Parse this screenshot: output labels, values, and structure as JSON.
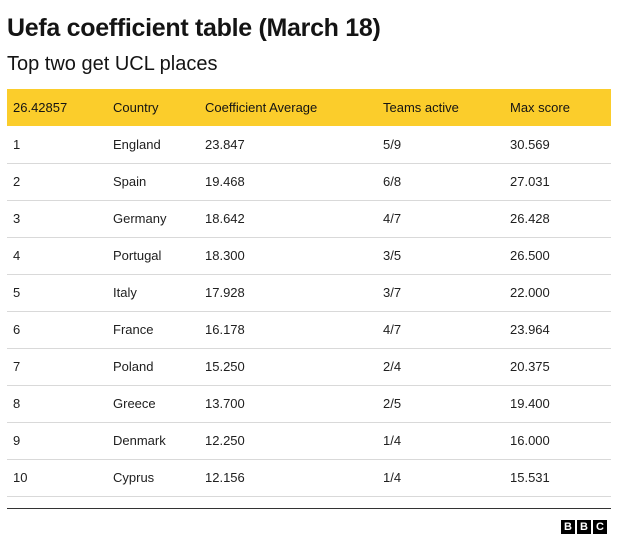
{
  "title": "Uefa coefficient table (March 18)",
  "subtitle": "Top two get UCL places",
  "table": {
    "headers": [
      "26.42857",
      "Country",
      "Coefficient Average",
      "Teams active",
      "Max score"
    ],
    "rows": [
      [
        "1",
        "England",
        "23.847",
        "5/9",
        "30.569"
      ],
      [
        "2",
        "Spain",
        "19.468",
        "6/8",
        "27.031"
      ],
      [
        "3",
        "Germany",
        "18.642",
        "4/7",
        "26.428"
      ],
      [
        "4",
        "Portugal",
        "18.300",
        "3/5",
        "26.500"
      ],
      [
        "5",
        "Italy",
        "17.928",
        "3/7",
        "22.000"
      ],
      [
        "6",
        "France",
        "16.178",
        "4/7",
        "23.964"
      ],
      [
        "7",
        "Poland",
        "15.250",
        "2/4",
        "20.375"
      ],
      [
        "8",
        "Greece",
        "13.700",
        "2/5",
        "19.400"
      ],
      [
        "9",
        "Denmark",
        "12.250",
        "1/4",
        "16.000"
      ],
      [
        "10",
        "Cyprus",
        "12.156",
        "1/4",
        "15.531"
      ]
    ]
  },
  "logo": [
    "B",
    "B",
    "C"
  ],
  "colors": {
    "header_bg": "#fbcd2b"
  }
}
